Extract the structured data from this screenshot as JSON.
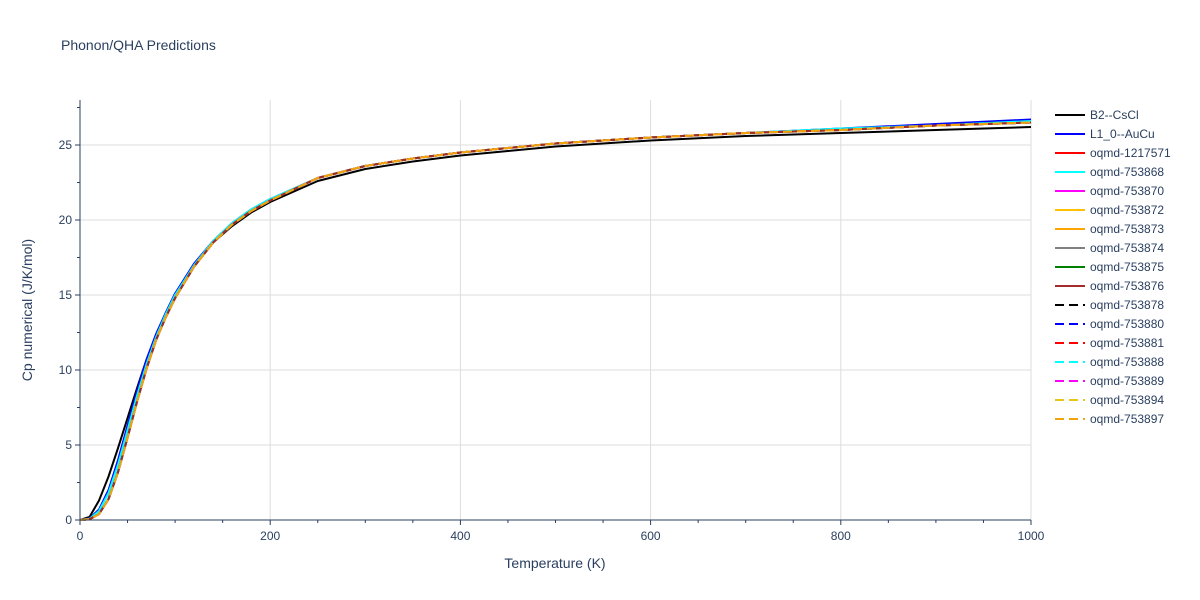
{
  "chart_data": {
    "type": "line",
    "title": "Phonon/QHA Predictions",
    "xlabel": "Temperature (K)",
    "ylabel": "Cp numerical (J/K/mol)",
    "xlim": [
      0,
      1000
    ],
    "ylim": [
      0,
      28
    ],
    "x_ticks": [
      0,
      200,
      400,
      600,
      800,
      1000
    ],
    "y_ticks": [
      0,
      5,
      10,
      15,
      20,
      25
    ],
    "grid": true,
    "legend_position": "right",
    "x": [
      0,
      10,
      20,
      30,
      40,
      50,
      60,
      70,
      80,
      90,
      100,
      120,
      140,
      160,
      180,
      200,
      250,
      300,
      350,
      400,
      450,
      500,
      600,
      700,
      800,
      900,
      1000
    ],
    "series": [
      {
        "name": "B2--CsCl",
        "color": "#000000",
        "dash": "solid",
        "values": [
          0,
          0.2,
          1.3,
          2.9,
          4.8,
          6.8,
          8.8,
          10.7,
          12.3,
          13.7,
          15.0,
          16.9,
          18.5,
          19.6,
          20.5,
          21.2,
          22.6,
          23.4,
          23.9,
          24.3,
          24.6,
          24.9,
          25.3,
          25.6,
          25.8,
          26.0,
          26.2
        ]
      },
      {
        "name": "L1_0--AuCu",
        "color": "#0000ff",
        "dash": "solid",
        "values": [
          0,
          0.1,
          0.7,
          2.0,
          4.0,
          6.3,
          8.6,
          10.7,
          12.4,
          13.8,
          15.1,
          17.1,
          18.6,
          19.8,
          20.7,
          21.4,
          22.8,
          23.6,
          24.1,
          24.5,
          24.8,
          25.1,
          25.5,
          25.8,
          26.1,
          26.4,
          26.7
        ]
      },
      {
        "name": "oqmd-1217571",
        "color": "#ff0000",
        "dash": "solid",
        "values": [
          0,
          0.05,
          0.4,
          1.4,
          3.2,
          5.5,
          7.9,
          10.1,
          12.0,
          13.5,
          14.8,
          16.9,
          18.5,
          19.7,
          20.6,
          21.3,
          22.8,
          23.6,
          24.1,
          24.5,
          24.8,
          25.1,
          25.5,
          25.8,
          26.0,
          26.3,
          26.5
        ]
      },
      {
        "name": "oqmd-753868",
        "color": "#00ffff",
        "dash": "solid",
        "values": [
          0,
          0.08,
          0.6,
          1.8,
          3.7,
          6.0,
          8.3,
          10.4,
          12.2,
          13.7,
          15.0,
          17.0,
          18.6,
          19.8,
          20.7,
          21.4,
          22.8,
          23.6,
          24.1,
          24.5,
          24.8,
          25.1,
          25.5,
          25.8,
          26.1,
          26.3,
          26.6
        ]
      },
      {
        "name": "oqmd-753870",
        "color": "#ff00ff",
        "dash": "solid",
        "values": [
          0,
          0.05,
          0.4,
          1.4,
          3.2,
          5.5,
          7.9,
          10.1,
          12.0,
          13.5,
          14.8,
          16.9,
          18.5,
          19.7,
          20.6,
          21.3,
          22.8,
          23.6,
          24.1,
          24.5,
          24.8,
          25.1,
          25.5,
          25.8,
          26.0,
          26.3,
          26.5
        ]
      },
      {
        "name": "oqmd-753872",
        "color": "#ffc000",
        "dash": "solid",
        "values": [
          0,
          0.05,
          0.4,
          1.4,
          3.2,
          5.5,
          7.9,
          10.1,
          12.0,
          13.5,
          14.8,
          16.9,
          18.5,
          19.7,
          20.6,
          21.3,
          22.8,
          23.6,
          24.1,
          24.5,
          24.8,
          25.1,
          25.5,
          25.8,
          26.0,
          26.3,
          26.5
        ]
      },
      {
        "name": "oqmd-753873",
        "color": "#ffa500",
        "dash": "solid",
        "values": [
          0,
          0.05,
          0.4,
          1.4,
          3.2,
          5.5,
          7.9,
          10.1,
          12.0,
          13.5,
          14.8,
          16.9,
          18.5,
          19.7,
          20.6,
          21.3,
          22.8,
          23.6,
          24.1,
          24.5,
          24.8,
          25.1,
          25.5,
          25.8,
          26.0,
          26.3,
          26.5
        ]
      },
      {
        "name": "oqmd-753874",
        "color": "#808080",
        "dash": "solid",
        "values": [
          0,
          0.05,
          0.4,
          1.4,
          3.2,
          5.5,
          7.9,
          10.1,
          12.0,
          13.5,
          14.8,
          16.9,
          18.5,
          19.7,
          20.6,
          21.3,
          22.8,
          23.6,
          24.1,
          24.5,
          24.8,
          25.1,
          25.5,
          25.8,
          26.0,
          26.3,
          26.5
        ]
      },
      {
        "name": "oqmd-753875",
        "color": "#008000",
        "dash": "solid",
        "values": [
          0,
          0.05,
          0.4,
          1.4,
          3.2,
          5.5,
          7.9,
          10.1,
          12.0,
          13.5,
          14.8,
          16.9,
          18.5,
          19.7,
          20.6,
          21.3,
          22.8,
          23.6,
          24.1,
          24.5,
          24.8,
          25.1,
          25.5,
          25.8,
          26.0,
          26.3,
          26.5
        ]
      },
      {
        "name": "oqmd-753876",
        "color": "#a52a2a",
        "dash": "solid",
        "values": [
          0,
          0.05,
          0.4,
          1.4,
          3.2,
          5.5,
          7.9,
          10.1,
          12.0,
          13.5,
          14.8,
          16.9,
          18.5,
          19.7,
          20.6,
          21.3,
          22.8,
          23.6,
          24.1,
          24.5,
          24.8,
          25.1,
          25.5,
          25.8,
          26.0,
          26.3,
          26.5
        ]
      },
      {
        "name": "oqmd-753878",
        "color": "#000000",
        "dash": "dash",
        "values": [
          0,
          0.05,
          0.4,
          1.4,
          3.2,
          5.5,
          7.9,
          10.1,
          12.0,
          13.5,
          14.8,
          16.9,
          18.5,
          19.7,
          20.6,
          21.3,
          22.8,
          23.6,
          24.1,
          24.5,
          24.8,
          25.1,
          25.5,
          25.8,
          26.0,
          26.3,
          26.5
        ]
      },
      {
        "name": "oqmd-753880",
        "color": "#0000ff",
        "dash": "dash",
        "values": [
          0,
          0.05,
          0.4,
          1.4,
          3.2,
          5.5,
          7.9,
          10.1,
          12.0,
          13.5,
          14.8,
          16.9,
          18.5,
          19.7,
          20.6,
          21.3,
          22.8,
          23.6,
          24.1,
          24.5,
          24.8,
          25.1,
          25.5,
          25.8,
          26.0,
          26.3,
          26.5
        ]
      },
      {
        "name": "oqmd-753881",
        "color": "#ff0000",
        "dash": "dash",
        "values": [
          0,
          0.05,
          0.4,
          1.4,
          3.2,
          5.5,
          7.9,
          10.1,
          12.0,
          13.5,
          14.8,
          16.9,
          18.5,
          19.7,
          20.6,
          21.3,
          22.8,
          23.6,
          24.1,
          24.5,
          24.8,
          25.1,
          25.5,
          25.8,
          26.0,
          26.3,
          26.5
        ]
      },
      {
        "name": "oqmd-753888",
        "color": "#00ffff",
        "dash": "dash",
        "values": [
          0,
          0.05,
          0.4,
          1.4,
          3.2,
          5.5,
          7.9,
          10.1,
          12.0,
          13.5,
          14.8,
          16.9,
          18.5,
          19.7,
          20.6,
          21.3,
          22.8,
          23.6,
          24.1,
          24.5,
          24.8,
          25.1,
          25.5,
          25.8,
          26.0,
          26.3,
          26.5
        ]
      },
      {
        "name": "oqmd-753889",
        "color": "#ff00ff",
        "dash": "dash",
        "values": [
          0,
          0.05,
          0.4,
          1.4,
          3.2,
          5.5,
          7.9,
          10.1,
          12.0,
          13.5,
          14.8,
          16.9,
          18.5,
          19.7,
          20.6,
          21.3,
          22.8,
          23.6,
          24.1,
          24.5,
          24.8,
          25.1,
          25.5,
          25.8,
          26.0,
          26.3,
          26.5
        ]
      },
      {
        "name": "oqmd-753894",
        "color": "#e6c619",
        "dash": "dash",
        "values": [
          0,
          0.05,
          0.4,
          1.4,
          3.2,
          5.5,
          7.9,
          10.1,
          12.0,
          13.5,
          14.8,
          16.9,
          18.5,
          19.7,
          20.6,
          21.3,
          22.8,
          23.6,
          24.1,
          24.5,
          24.8,
          25.1,
          25.5,
          25.8,
          26.0,
          26.3,
          26.5
        ]
      },
      {
        "name": "oqmd-753897",
        "color": "#f0a30a",
        "dash": "dash",
        "values": [
          0,
          0.05,
          0.4,
          1.4,
          3.2,
          5.5,
          7.9,
          10.1,
          12.0,
          13.5,
          14.8,
          16.9,
          18.5,
          19.7,
          20.6,
          21.3,
          22.8,
          23.6,
          24.1,
          24.5,
          24.8,
          25.1,
          25.5,
          25.8,
          26.0,
          26.3,
          26.5
        ]
      }
    ]
  }
}
